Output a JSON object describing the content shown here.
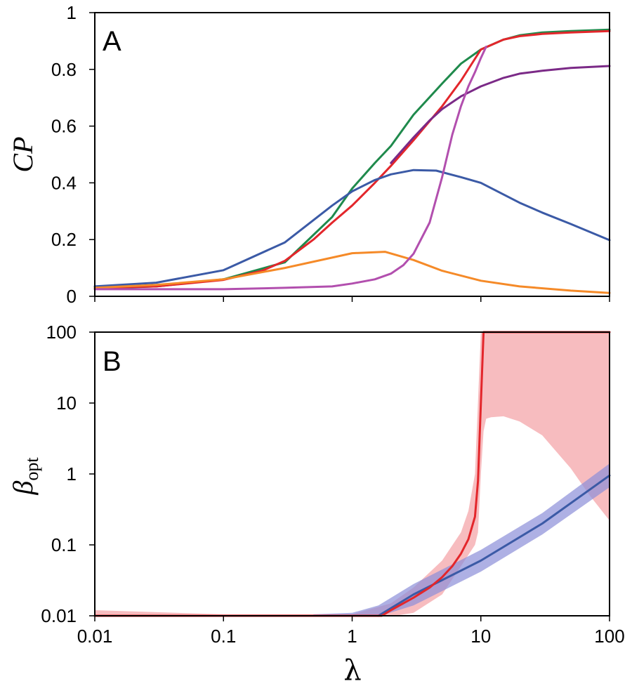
{
  "chart_data": [
    {
      "panel": "A",
      "type": "line",
      "ylabel": "CP",
      "xscale": "log",
      "xlim": [
        0.01,
        100
      ],
      "ylim": [
        0,
        1
      ],
      "yticks": [
        0,
        0.2,
        0.4,
        0.6,
        0.8,
        1
      ],
      "ytick_labels": [
        "0",
        "0.2",
        "0.4",
        "0.6",
        "0.8",
        "1"
      ],
      "xticks": [
        0.01,
        0.1,
        1,
        10,
        100
      ],
      "series": [
        {
          "name": "green",
          "color": "#1f8a4c",
          "x": [
            0.01,
            0.03,
            0.1,
            0.3,
            0.7,
            1,
            1.5,
            2,
            3,
            5,
            7,
            10,
            15,
            20,
            30,
            50,
            100
          ],
          "y": [
            0.028,
            0.035,
            0.06,
            0.12,
            0.28,
            0.38,
            0.47,
            0.53,
            0.64,
            0.75,
            0.82,
            0.87,
            0.905,
            0.92,
            0.93,
            0.935,
            0.94
          ]
        },
        {
          "name": "red",
          "color": "#e3262b",
          "x": [
            0.01,
            0.03,
            0.1,
            0.2,
            0.3,
            0.5,
            0.7,
            1,
            1.5,
            2,
            3,
            5,
            7,
            10,
            15,
            20,
            30,
            50,
            100
          ],
          "y": [
            0.03,
            0.035,
            0.058,
            0.09,
            0.125,
            0.2,
            0.26,
            0.32,
            0.4,
            0.46,
            0.55,
            0.67,
            0.76,
            0.87,
            0.905,
            0.917,
            0.925,
            0.93,
            0.935
          ]
        },
        {
          "name": "purple",
          "color": "#7b2a87",
          "x": [
            2,
            3,
            4,
            5,
            7,
            10,
            15,
            20,
            30,
            50,
            100
          ],
          "y": [
            0.47,
            0.56,
            0.62,
            0.66,
            0.705,
            0.74,
            0.77,
            0.785,
            0.795,
            0.805,
            0.812
          ]
        },
        {
          "name": "blue",
          "color": "#3b5aa6",
          "x": [
            0.01,
            0.03,
            0.1,
            0.3,
            0.7,
            1,
            1.5,
            2,
            3,
            4.5,
            7,
            10,
            20,
            30,
            50,
            100
          ],
          "y": [
            0.035,
            0.048,
            0.092,
            0.19,
            0.32,
            0.37,
            0.41,
            0.43,
            0.445,
            0.443,
            0.42,
            0.4,
            0.33,
            0.295,
            0.255,
            0.198
          ]
        },
        {
          "name": "orange",
          "color": "#f58a28",
          "x": [
            0.01,
            0.03,
            0.1,
            0.3,
            1,
            1.8,
            3,
            5,
            10,
            20,
            50,
            100
          ],
          "y": [
            0.03,
            0.04,
            0.06,
            0.1,
            0.152,
            0.157,
            0.128,
            0.09,
            0.055,
            0.035,
            0.02,
            0.012
          ]
        },
        {
          "name": "magenta",
          "color": "#b24fae",
          "x": [
            0.01,
            0.1,
            0.3,
            0.7,
            1,
            1.5,
            2,
            2.5,
            3,
            4,
            5,
            6,
            7,
            8,
            9,
            10,
            11
          ],
          "y": [
            0.025,
            0.025,
            0.03,
            0.035,
            0.045,
            0.06,
            0.08,
            0.11,
            0.15,
            0.26,
            0.42,
            0.57,
            0.67,
            0.74,
            0.79,
            0.84,
            0.88
          ]
        }
      ]
    },
    {
      "panel": "B",
      "type": "line",
      "ylabel": "β",
      "ylabel_sub": "opt",
      "xlabel": "λ",
      "xscale": "log",
      "yscale": "log",
      "xlim": [
        0.01,
        100
      ],
      "ylim": [
        0.01,
        100
      ],
      "yticks": [
        0.01,
        0.1,
        1,
        10,
        100
      ],
      "ytick_labels": [
        "0.01",
        "0.1",
        "1",
        "10",
        "100"
      ],
      "xticks": [
        0.01,
        0.1,
        1,
        10,
        100
      ],
      "xtick_labels": [
        "0.01",
        "0.1",
        "1",
        "10",
        "100"
      ],
      "series": [
        {
          "name": "red",
          "color": "#e3262b",
          "x": [
            0.01,
            0.1,
            1,
            1.7,
            2,
            3,
            4,
            5,
            6,
            7,
            8,
            9,
            9.5,
            10,
            10.5,
            11,
            20,
            50,
            100
          ],
          "y": [
            0.01,
            0.01,
            0.01,
            0.01,
            0.012,
            0.018,
            0.025,
            0.035,
            0.05,
            0.075,
            0.12,
            0.25,
            0.8,
            10,
            100,
            100,
            100,
            100,
            100
          ]
        },
        {
          "name": "blue",
          "color": "#3b5aa6",
          "x": [
            1.6,
            3,
            10,
            30,
            100
          ],
          "y": [
            0.01,
            0.02,
            0.06,
            0.2,
            0.95
          ]
        }
      ],
      "bands": [
        {
          "name": "red-band",
          "color": "#f4a6aa",
          "upper_x": [
            0.01,
            0.1,
            1,
            2,
            3,
            5,
            7,
            8,
            9,
            10,
            11,
            100
          ],
          "upper_y": [
            0.012,
            0.0105,
            0.0105,
            0.015,
            0.025,
            0.06,
            0.15,
            0.3,
            1,
            100,
            100,
            100
          ],
          "lower_x": [
            0.01,
            0.1,
            1,
            2,
            3,
            5,
            7,
            9,
            9.5,
            10,
            10.5,
            11,
            12,
            15,
            20,
            30,
            50,
            70,
            100
          ],
          "lower_y": [
            0.0098,
            0.0098,
            0.0098,
            0.0098,
            0.011,
            0.02,
            0.05,
            0.1,
            0.15,
            1,
            4,
            6,
            6.3,
            6.5,
            5.5,
            3.5,
            1.2,
            0.5,
            0.22
          ]
        },
        {
          "name": "blue-band",
          "color": "#8c8fd8",
          "upper_x": [
            0.5,
            1,
            1.6,
            3,
            10,
            30,
            100
          ],
          "upper_y": [
            0.0105,
            0.011,
            0.014,
            0.028,
            0.085,
            0.28,
            1.4
          ],
          "lower_x": [
            0.5,
            1,
            1.6,
            3,
            10,
            30,
            100
          ],
          "lower_y": [
            0.0098,
            0.0098,
            0.0098,
            0.014,
            0.042,
            0.14,
            0.65
          ]
        }
      ]
    }
  ]
}
